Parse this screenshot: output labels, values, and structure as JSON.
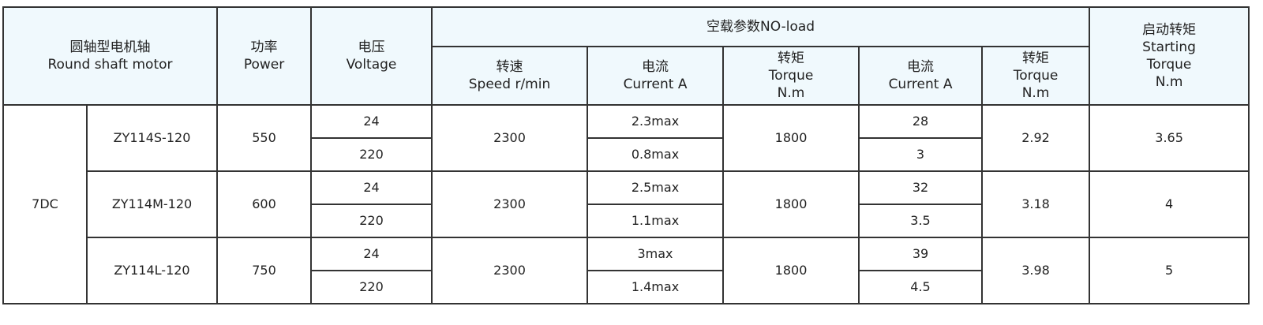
{
  "header": {
    "motor": {
      "zh": "圆轴型电机轴",
      "en": "Round shaft motor"
    },
    "power": {
      "zh": "功率",
      "en": "Power"
    },
    "voltage": {
      "zh": "电压",
      "en": "Voltage"
    },
    "noload": "空载参数NO-load",
    "speed": {
      "zh": "转速",
      "en": "Speed r/min"
    },
    "current1": {
      "zh": "电流",
      "en": "Current A"
    },
    "torque1": {
      "zh": "转矩",
      "en": "Torque",
      "unit": "N.m"
    },
    "current2": {
      "zh": "电流",
      "en": "Current A"
    },
    "torque2": {
      "zh": "转矩",
      "en": "Torque",
      "unit": "N.m"
    },
    "starting": {
      "zh": "启动转矩",
      "en1": "Starting",
      "en2": "Torque",
      "unit": "N.m"
    }
  },
  "group": "7DC",
  "models": [
    {
      "model": "ZY114S-120",
      "power": "550",
      "voltages": [
        "24",
        "220"
      ],
      "speed": "2300",
      "currents": [
        "2.3max",
        "0.8max"
      ],
      "torque": "1800",
      "currents2": [
        "28",
        "3"
      ],
      "torque2": "2.92",
      "starting": "3.65"
    },
    {
      "model": "ZY114M-120",
      "power": "600",
      "voltages": [
        "24",
        "220"
      ],
      "speed": "2300",
      "currents": [
        "2.5max",
        "1.1max"
      ],
      "torque": "1800",
      "currents2": [
        "32",
        "3.5"
      ],
      "torque2": "3.18",
      "starting": "4"
    },
    {
      "model": "ZY114L-120",
      "power": "750",
      "voltages": [
        "24",
        "220"
      ],
      "speed": "2300",
      "currents": [
        "3max",
        "1.4max"
      ],
      "torque": "1800",
      "currents2": [
        "39",
        "4.5"
      ],
      "torque2": "3.98",
      "starting": "5"
    }
  ]
}
